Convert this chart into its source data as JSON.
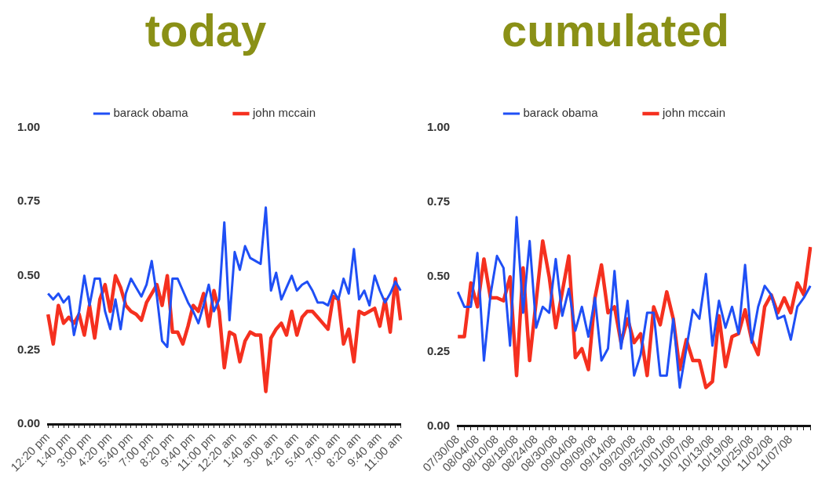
{
  "chart_data": [
    {
      "type": "line",
      "title": "today",
      "categories": [
        "12:20 pm",
        null,
        null,
        null,
        "1:40 pm",
        null,
        null,
        null,
        "3:00 pm",
        null,
        null,
        null,
        "4:20 pm",
        null,
        null,
        null,
        "5:40 pm",
        null,
        null,
        null,
        "7:00 pm",
        null,
        null,
        null,
        "8:20 pm",
        null,
        null,
        null,
        "9:40 pm",
        null,
        null,
        null,
        "11:00 pm",
        null,
        null,
        null,
        "12:20 am",
        null,
        null,
        null,
        "1:40 am",
        null,
        null,
        null,
        "3:00 am",
        null,
        null,
        null,
        "4:20 am",
        null,
        null,
        null,
        "5:40 am",
        null,
        null,
        null,
        "7:00 am",
        null,
        null,
        null,
        "8:20 am",
        null,
        null,
        null,
        "9:40 am",
        null,
        null,
        null,
        "11:00 am"
      ],
      "series": [
        {
          "name": "barack obama",
          "color": "#1f4ff5",
          "values": [
            0.44,
            0.42,
            0.44,
            0.41,
            0.43,
            0.3,
            0.38,
            0.5,
            0.4,
            0.49,
            0.49,
            0.38,
            0.32,
            0.42,
            0.32,
            0.44,
            0.49,
            0.46,
            0.43,
            0.47,
            0.55,
            0.43,
            0.28,
            0.26,
            0.49,
            0.49,
            0.45,
            0.41,
            0.38,
            0.34,
            0.4,
            0.47,
            0.38,
            0.42,
            0.68,
            0.35,
            0.58,
            0.52,
            0.6,
            0.56,
            0.55,
            0.54,
            0.73,
            0.45,
            0.51,
            0.42,
            0.46,
            0.5,
            0.45,
            0.47,
            0.48,
            0.45,
            0.41,
            0.41,
            0.4,
            0.45,
            0.42,
            0.49,
            0.44,
            0.59,
            0.42,
            0.45,
            0.4,
            0.5,
            0.45,
            0.41,
            0.44,
            0.48,
            0.45
          ]
        },
        {
          "name": "john mccain",
          "color": "#f5301f",
          "values": [
            0.37,
            0.27,
            0.4,
            0.34,
            0.36,
            0.34,
            0.37,
            0.3,
            0.4,
            0.29,
            0.42,
            0.47,
            0.38,
            0.5,
            0.46,
            0.4,
            0.38,
            0.37,
            0.35,
            0.41,
            0.44,
            0.47,
            0.4,
            0.5,
            0.31,
            0.31,
            0.27,
            0.33,
            0.4,
            0.38,
            0.44,
            0.33,
            0.45,
            0.38,
            0.19,
            0.31,
            0.3,
            0.21,
            0.28,
            0.31,
            0.3,
            0.3,
            0.11,
            0.29,
            0.32,
            0.34,
            0.3,
            0.38,
            0.3,
            0.36,
            0.38,
            0.38,
            0.36,
            0.34,
            0.32,
            0.43,
            0.42,
            0.27,
            0.32,
            0.21,
            0.38,
            0.37,
            0.38,
            0.39,
            0.33,
            0.42,
            0.31,
            0.49,
            0.35
          ]
        }
      ],
      "ylim": [
        0,
        1
      ],
      "yticks": [
        {
          "value": 0,
          "label": "0.00"
        },
        {
          "value": 0.25,
          "label": "0.25"
        },
        {
          "value": 0.5,
          "label": "0.50"
        },
        {
          "value": 0.75,
          "label": "0.75"
        },
        {
          "value": 1,
          "label": "1.00"
        }
      ],
      "legend": "top",
      "grid": false
    },
    {
      "type": "line",
      "title": "cumulated",
      "categories": [
        "07/30/08",
        null,
        null,
        "08/04/08",
        null,
        null,
        "08/10/08",
        null,
        null,
        "08/18/08",
        null,
        null,
        "08/24/08",
        null,
        null,
        "08/30/08",
        null,
        null,
        "09/04/08",
        null,
        null,
        "09/09/08",
        null,
        null,
        "09/14/08",
        null,
        null,
        "09/20/08",
        null,
        null,
        "09/25/08",
        null,
        null,
        "10/01/08",
        null,
        null,
        "10/07/08",
        null,
        null,
        "10/13/08",
        null,
        null,
        "10/19/08",
        null,
        null,
        "10/25/08",
        null,
        null,
        "11/02/08",
        null,
        null,
        "11/07/08",
        null,
        null,
        null
      ],
      "series": [
        {
          "name": "barack obama",
          "color": "#1f4ff5",
          "values": [
            0.45,
            0.4,
            0.4,
            0.58,
            0.22,
            0.44,
            0.57,
            0.53,
            0.27,
            0.7,
            0.38,
            0.62,
            0.33,
            0.4,
            0.38,
            0.56,
            0.37,
            0.46,
            0.32,
            0.4,
            0.3,
            0.43,
            0.22,
            0.26,
            0.52,
            0.26,
            0.42,
            0.17,
            0.24,
            0.38,
            0.38,
            0.17,
            0.17,
            0.36,
            0.13,
            0.26,
            0.39,
            0.36,
            0.51,
            0.27,
            0.42,
            0.33,
            0.4,
            0.31,
            0.54,
            0.28,
            0.4,
            0.47,
            0.44,
            0.36,
            0.37,
            0.29,
            0.4,
            0.43,
            0.47
          ]
        },
        {
          "name": "john mccain",
          "color": "#f5301f",
          "values": [
            0.3,
            0.3,
            0.48,
            0.4,
            0.56,
            0.43,
            0.43,
            0.42,
            0.5,
            0.17,
            0.53,
            0.22,
            0.42,
            0.62,
            0.5,
            0.33,
            0.45,
            0.57,
            0.23,
            0.26,
            0.19,
            0.43,
            0.54,
            0.38,
            0.4,
            0.28,
            0.36,
            0.28,
            0.31,
            0.17,
            0.4,
            0.34,
            0.45,
            0.36,
            0.19,
            0.29,
            0.22,
            0.22,
            0.13,
            0.15,
            0.37,
            0.2,
            0.3,
            0.31,
            0.39,
            0.29,
            0.24,
            0.4,
            0.44,
            0.38,
            0.43,
            0.38,
            0.48,
            0.44,
            0.6
          ]
        }
      ],
      "ylim": [
        0,
        1
      ],
      "yticks": [
        {
          "value": 0,
          "label": "0.00"
        },
        {
          "value": 0.25,
          "label": "0.25"
        },
        {
          "value": 0.5,
          "label": "0.50"
        },
        {
          "value": 0.75,
          "label": "0.75"
        },
        {
          "value": 1,
          "label": "1.00"
        }
      ],
      "legend": "top",
      "grid": false
    }
  ]
}
